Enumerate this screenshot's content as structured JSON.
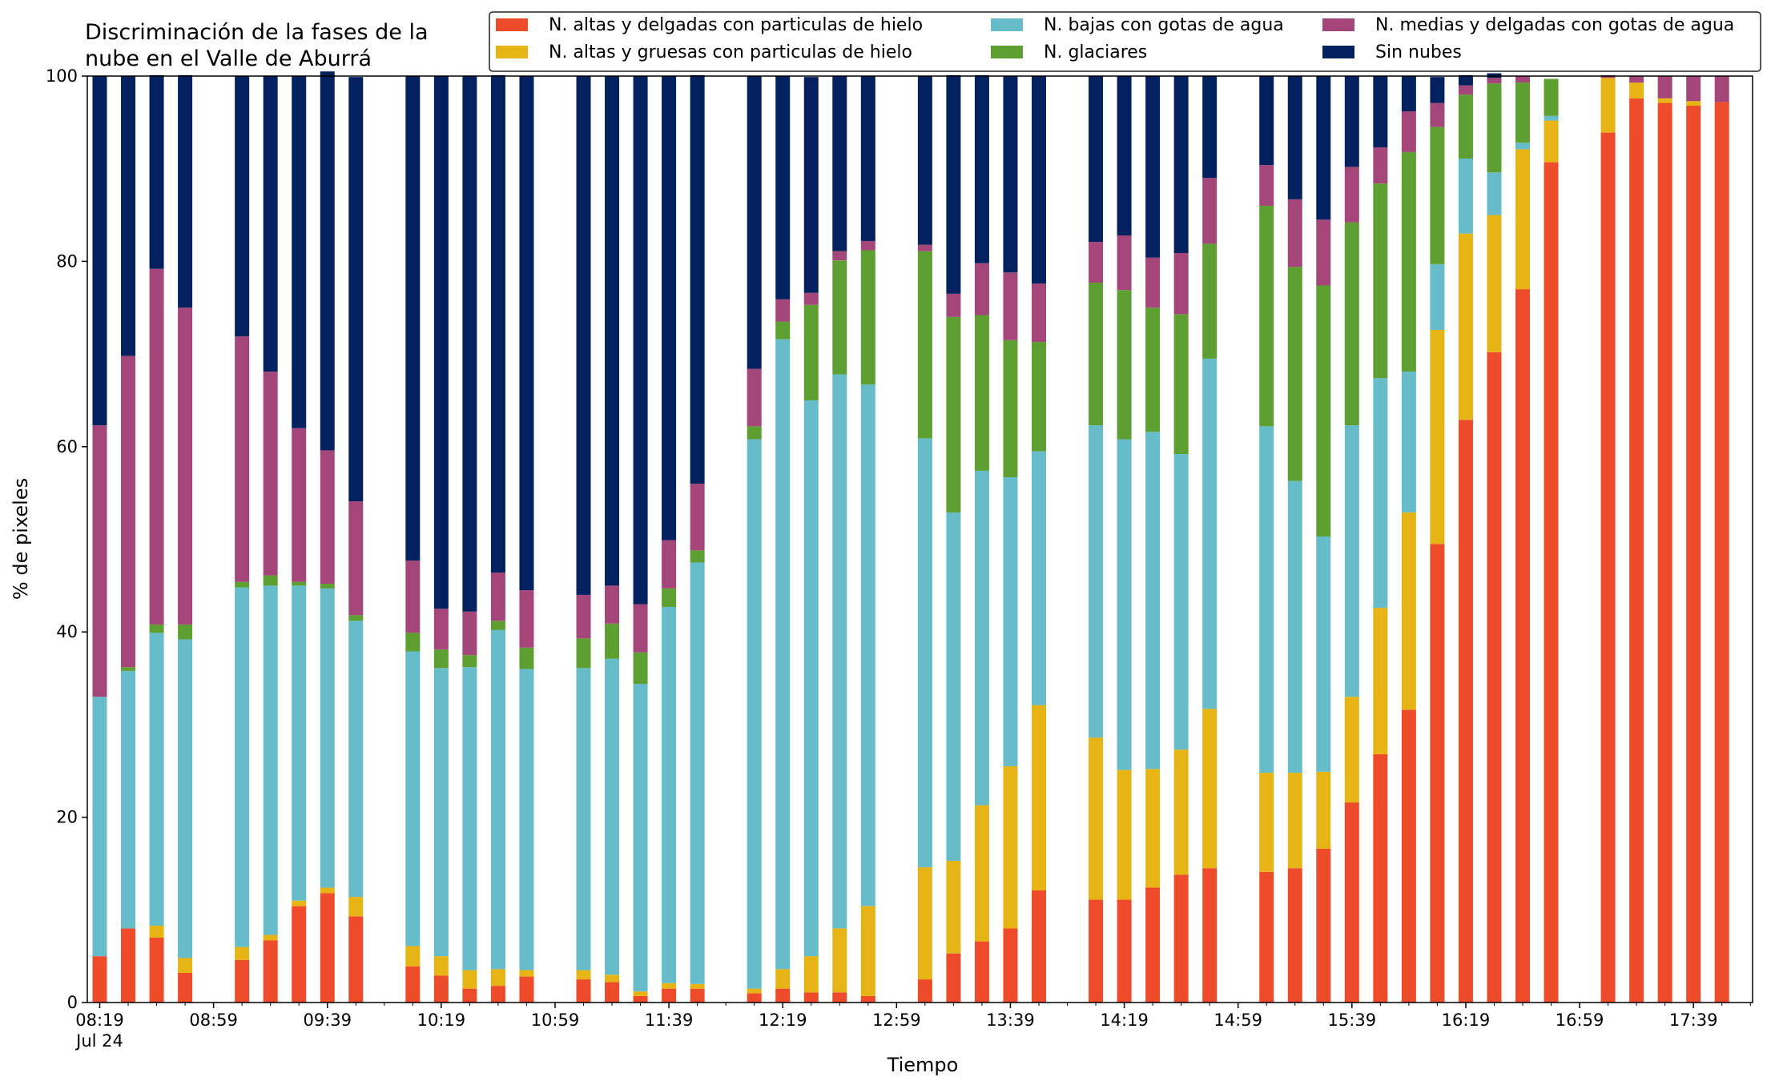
{
  "chart_data": {
    "type": "bar",
    "stacked": true,
    "title": [
      "Discriminación de la fases de la",
      "nube en el Valle de Aburrá"
    ],
    "xlabel": "Tiempo",
    "ylabel": "% de pixeles",
    "ylim": [
      0,
      100
    ],
    "yticks": [
      0,
      20,
      40,
      60,
      80,
      100
    ],
    "xticks": [
      {
        "label": "08:19",
        "sublabel": "Jul 24",
        "t": 0
      },
      {
        "label": "08:59",
        "t": 4
      },
      {
        "label": "09:39",
        "t": 8
      },
      {
        "label": "10:19",
        "t": 12
      },
      {
        "label": "10:59",
        "t": 16
      },
      {
        "label": "11:39",
        "t": 20
      },
      {
        "label": "12:19",
        "t": 24
      },
      {
        "label": "12:59",
        "t": 28
      },
      {
        "label": "13:39",
        "t": 32
      },
      {
        "label": "14:19",
        "t": 36
      },
      {
        "label": "14:59",
        "t": 40
      },
      {
        "label": "15:39",
        "t": 44
      },
      {
        "label": "16:19",
        "t": 48
      },
      {
        "label": "16:59",
        "t": 52
      },
      {
        "label": "17:39",
        "t": 56
      }
    ],
    "grid": false,
    "legend_position": "top-right",
    "x": [
      0,
      1,
      2,
      3,
      5,
      6,
      7,
      8,
      9,
      11,
      12,
      13,
      14,
      15,
      17,
      18,
      19,
      20,
      21,
      23,
      24,
      25,
      26,
      27,
      29,
      30,
      31,
      32,
      33,
      35,
      36,
      37,
      38,
      39,
      41,
      42,
      43,
      44,
      45,
      46,
      47,
      48,
      49,
      50,
      51,
      53,
      54,
      55,
      56,
      57
    ],
    "series": [
      {
        "name": "N. altas y delgadas con particulas de hielo",
        "color": "#ee4b2b",
        "values": [
          5,
          8,
          7,
          3.2,
          4.6,
          6.7,
          10.4,
          11.8,
          9.3,
          3.9,
          2.9,
          1.5,
          1.8,
          2.8,
          2.5,
          2.2,
          0.7,
          1.5,
          1.5,
          1,
          1.5,
          1.1,
          1.1,
          0.7,
          2.5,
          5.3,
          6.6,
          8,
          12.1,
          11.1,
          11.1,
          12.4,
          13.8,
          14.5,
          14.1,
          14.5,
          16.6,
          21.6,
          26.8,
          31.6,
          49.5,
          62.9,
          70.2,
          77,
          90.7,
          93.9,
          97.6,
          97.1,
          96.8,
          97.2
        ]
      },
      {
        "name": "N. altas y gruesas con particulas de hielo",
        "color": "#e7b416",
        "values": [
          0,
          0,
          1.3,
          1.6,
          1.4,
          0.6,
          0.6,
          0.6,
          2.1,
          2.2,
          2.1,
          2,
          1.8,
          0.7,
          1,
          0.8,
          0.5,
          0.6,
          0.5,
          0.5,
          2.1,
          3.9,
          6.9,
          9.7,
          12.1,
          10,
          14.7,
          17.5,
          20,
          17.5,
          14,
          12.8,
          13.5,
          17.2,
          10.7,
          10.3,
          8.3,
          11.4,
          15.8,
          21.3,
          23.1,
          20.1,
          14.8,
          15.1,
          4.5,
          5.9,
          1.7,
          0.5,
          0.5,
          0
        ]
      },
      {
        "name": "N. bajas con gotas de agua",
        "color": "#66bdc9",
        "values": [
          28,
          27.8,
          31.6,
          34.4,
          38.8,
          37.7,
          34,
          32.3,
          29.8,
          31.8,
          31.1,
          32.7,
          36.6,
          32.5,
          32.6,
          34.1,
          33.2,
          40.6,
          45.5,
          59.3,
          68,
          60,
          59.8,
          56.3,
          46.3,
          37.6,
          36.1,
          31.2,
          27.4,
          33.7,
          35.7,
          36.4,
          31.9,
          37.8,
          37.4,
          31.5,
          25.4,
          29.3,
          24.8,
          15.2,
          7.1,
          8.1,
          4.6,
          0.7,
          0.5,
          0,
          0,
          0,
          0,
          0
        ]
      },
      {
        "name": "N. glaciares",
        "color": "#5d9f30",
        "values": [
          0,
          0.4,
          0.9,
          1.6,
          0.6,
          1.1,
          0.4,
          0.5,
          0.6,
          2,
          2,
          1.3,
          1,
          2.3,
          3.2,
          3.8,
          3.4,
          2,
          1.3,
          1.4,
          1.9,
          10.3,
          12.3,
          14.5,
          20.2,
          21.1,
          16.8,
          14.8,
          11.8,
          15.4,
          16.1,
          13.4,
          15.1,
          12.4,
          23.8,
          23.1,
          27.1,
          21.9,
          21,
          23.7,
          14.8,
          6.9,
          9.6,
          6.5,
          4,
          0,
          0,
          0,
          0,
          0
        ]
      },
      {
        "name": "N. medias y delgadas con gotas de agua",
        "color": "#a5467b",
        "values": [
          29.3,
          33.6,
          38.4,
          34.2,
          26.5,
          22,
          16.6,
          14.4,
          12.3,
          7.8,
          4.4,
          4.7,
          5.2,
          6.2,
          4.7,
          4.1,
          5.2,
          5.2,
          7.2,
          6.2,
          2.4,
          1.3,
          1,
          1,
          0.7,
          2.5,
          5.6,
          7.3,
          6.3,
          4.4,
          5.9,
          5.4,
          6.6,
          7.1,
          4.4,
          7.3,
          7.1,
          6,
          3.9,
          4.4,
          2.6,
          1,
          0.6,
          0.7,
          0,
          0.3,
          0.7,
          2.4,
          2.7,
          2.8
        ]
      },
      {
        "name": "Sin nubes",
        "color": "#03215f",
        "values": [
          37.7,
          30.2,
          20.9,
          25.1,
          28.1,
          31.9,
          38,
          40.9,
          45.8,
          52.3,
          57.5,
          57.8,
          53.7,
          55.5,
          56,
          55,
          57,
          50.1,
          44.1,
          31.6,
          24.1,
          23.3,
          18.9,
          17.8,
          18.2,
          23.6,
          20.3,
          21.2,
          22.4,
          17.9,
          17.2,
          19.6,
          19.1,
          11,
          9.6,
          13.3,
          15.5,
          9.8,
          7.7,
          3.8,
          2.8,
          1.1,
          0.5,
          0,
          0,
          0,
          0,
          0,
          0,
          0
        ]
      }
    ]
  }
}
